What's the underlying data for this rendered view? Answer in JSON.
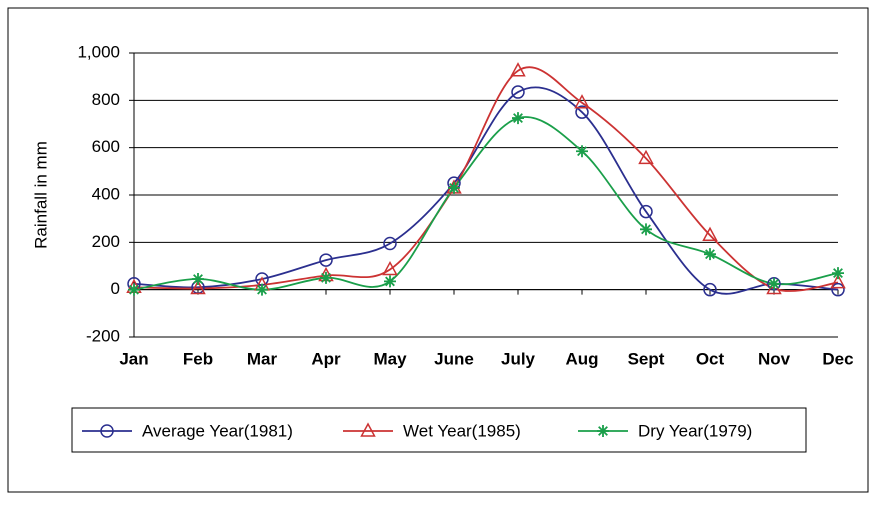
{
  "chart_data": {
    "type": "line",
    "y_label": "Rainfall in mm",
    "categories": [
      "Jan",
      "Feb",
      "Mar",
      "Apr",
      "May",
      "June",
      "July",
      "Aug",
      "Sept",
      "Oct",
      "Nov",
      "Dec"
    ],
    "series": [
      {
        "name": "Average Year(1981)",
        "color": "#2b2f8f",
        "marker": "circle",
        "values": [
          25,
          10,
          45,
          125,
          195,
          450,
          835,
          750,
          330,
          0,
          25,
          0
        ]
      },
      {
        "name": "Wet Year(1985)",
        "color": "#cc3333",
        "marker": "triangle",
        "values": [
          10,
          5,
          20,
          60,
          85,
          430,
          925,
          790,
          555,
          230,
          5,
          30
        ]
      },
      {
        "name": "Dry Year(1979)",
        "color": "#1a9f4a",
        "marker": "star",
        "values": [
          0,
          45,
          0,
          50,
          35,
          430,
          725,
          585,
          255,
          150,
          25,
          70
        ]
      }
    ],
    "ylim": [
      -200,
      1000
    ],
    "yticks": [
      -200,
      0,
      200,
      400,
      600,
      800,
      {
        "value": 1000,
        "label": "1,000"
      }
    ],
    "grid": true,
    "smooth": true,
    "legend": "bottom"
  }
}
